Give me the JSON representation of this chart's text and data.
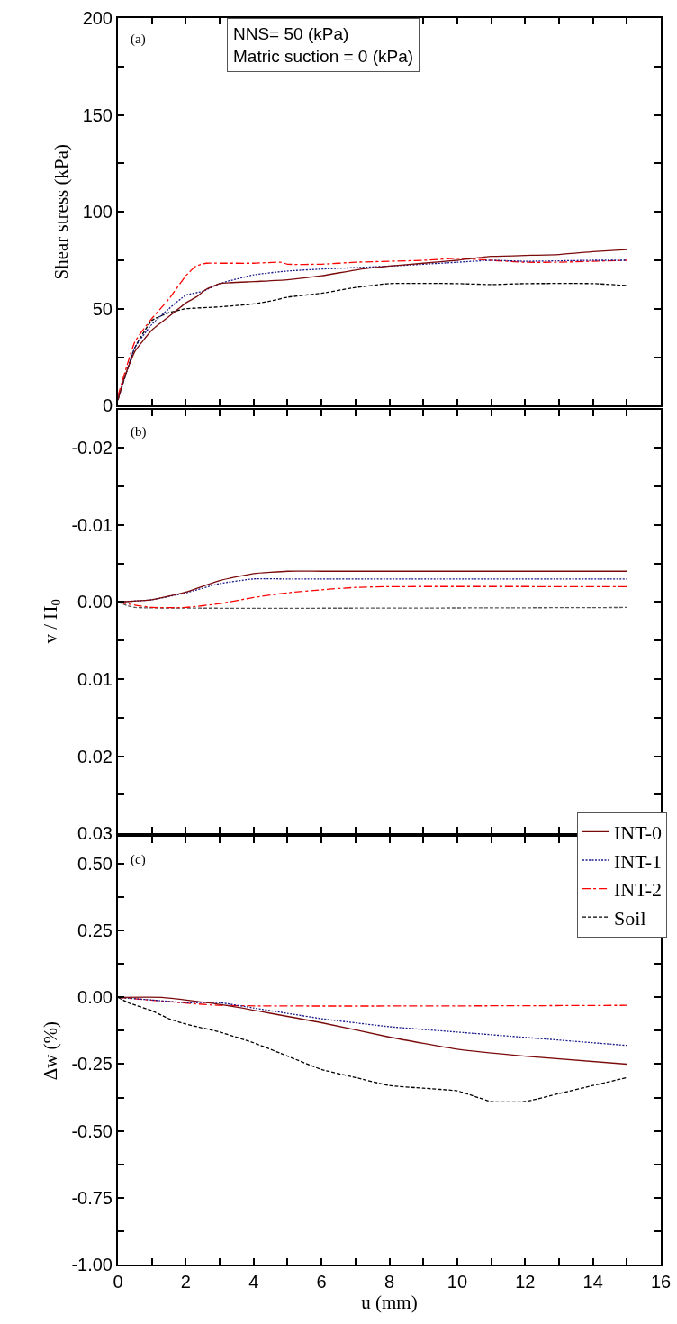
{
  "chart_data": [
    {
      "type": "line",
      "ylabel": "Shear stress (kPa)",
      "annotations": [
        "(a)",
        "NNS= 50 (kPa)",
        "Matric suction = 0 (kPa)"
      ],
      "xlim": [
        0,
        16
      ],
      "xticks": [
        0,
        {
          "value": 1,
          "label": null
        },
        2,
        {
          "value": 3,
          "label": null
        },
        4,
        {
          "value": 5,
          "label": null
        },
        6,
        {
          "value": 7,
          "label": null
        },
        8,
        {
          "value": 9,
          "label": null
        },
        10,
        {
          "value": 11,
          "label": null
        },
        12,
        {
          "value": 13,
          "label": null
        },
        14,
        {
          "value": 15,
          "label": null
        },
        16
      ],
      "ylim": [
        0,
        200
      ],
      "yticks": [
        0,
        {
          "value": 25,
          "label": null
        },
        50,
        {
          "value": 75,
          "label": null
        },
        100,
        {
          "value": 125,
          "label": null
        },
        150,
        {
          "value": 175,
          "label": null
        },
        200
      ],
      "tick_labels": "y",
      "series": [
        {
          "color": "#7b0a0a",
          "line_style": "solid",
          "x": [
            0,
            0.2,
            0.5,
            1,
            1.5,
            2,
            2.3,
            2.6,
            3,
            4,
            5,
            6,
            7,
            8,
            9,
            10,
            11,
            12,
            13,
            14,
            15
          ],
          "values": [
            3,
            15,
            28,
            39,
            46,
            53,
            56,
            60,
            63,
            64,
            65,
            67,
            70,
            72,
            73.5,
            75,
            77,
            77.5,
            78,
            79.5,
            80.5
          ]
        },
        {
          "color": "#1a1a8c",
          "line_style": "dotted",
          "x": [
            0,
            0.5,
            1,
            1.5,
            2,
            2.5,
            3,
            4,
            5,
            6,
            8,
            10,
            11,
            12,
            14,
            15
          ],
          "values": [
            3,
            30,
            42,
            50,
            57,
            59,
            63,
            67.5,
            69.5,
            70.5,
            72,
            74,
            75,
            74.5,
            75,
            75
          ]
        },
        {
          "color": "#ff0000",
          "line_style": "dashdot",
          "x": [
            0,
            0.5,
            1,
            1.5,
            2,
            2.3,
            2.6,
            3,
            4,
            4.8,
            5,
            6,
            7,
            9,
            10,
            11,
            12,
            13,
            14,
            15
          ],
          "values": [
            5,
            33,
            45,
            55,
            67,
            72,
            73.5,
            73.5,
            73.5,
            74,
            73,
            73,
            74,
            75,
            76,
            75,
            74,
            74,
            74.5,
            75
          ]
        },
        {
          "color": "#000000",
          "line_style": "dashed",
          "x": [
            0,
            0.5,
            1,
            1.5,
            2,
            3,
            4,
            4.5,
            5,
            6,
            7,
            8,
            10,
            11,
            12,
            14,
            15
          ],
          "values": [
            3,
            30,
            44,
            48,
            50,
            51,
            52.5,
            54,
            56,
            58,
            61,
            63,
            63,
            62.5,
            63,
            63,
            62
          ]
        }
      ]
    },
    {
      "type": "line",
      "ylabel": "v / H$_{0}$",
      "annotations": [
        "(b)"
      ],
      "xlim": [
        0,
        16
      ],
      "xticks": [
        0,
        {
          "value": 1,
          "label": null
        },
        2,
        {
          "value": 3,
          "label": null
        },
        4,
        {
          "value": 5,
          "label": null
        },
        6,
        {
          "value": 7,
          "label": null
        },
        8,
        {
          "value": 9,
          "label": null
        },
        10,
        {
          "value": 11,
          "label": null
        },
        12,
        {
          "value": 13,
          "label": null
        },
        14,
        {
          "value": 15,
          "label": null
        },
        16
      ],
      "ylim": [
        0.03,
        -0.025
      ],
      "yticks": [
        -0.02,
        {
          "value": -0.015,
          "label": null
        },
        -0.01,
        {
          "value": -0.005,
          "label": null
        },
        {
          "value": 0,
          "label": "0.00"
        },
        {
          "value": 0.005,
          "label": null
        },
        0.01,
        {
          "value": 0.015,
          "label": null
        },
        0.02,
        {
          "value": 0.025,
          "label": null
        },
        0.03
      ],
      "tick_labels": "y",
      "series": [
        {
          "color": "#7b0a0a",
          "line_style": "solid",
          "x": [
            0,
            1,
            2,
            3,
            4,
            5,
            6,
            15
          ],
          "values": [
            0,
            -0.0003,
            -0.0013,
            -0.0028,
            -0.0037,
            -0.004,
            -0.004,
            -0.004
          ]
        },
        {
          "color": "#1a1a8c",
          "line_style": "dotted",
          "x": [
            0,
            1,
            2,
            3,
            4,
            5,
            15
          ],
          "values": [
            0,
            -0.0003,
            -0.0012,
            -0.0024,
            -0.003,
            -0.003,
            -0.003
          ]
        },
        {
          "color": "#ff0000",
          "line_style": "dashdot",
          "x": [
            0,
            0.5,
            1,
            2,
            3,
            4,
            5,
            6,
            7,
            8,
            15
          ],
          "values": [
            0,
            0.0004,
            0.0007,
            0.0007,
            0.0002,
            -0.0006,
            -0.0012,
            -0.0016,
            -0.0019,
            -0.002,
            -0.002
          ]
        },
        {
          "color": "#555555",
          "line_style": "dashed",
          "x": [
            0,
            0.3,
            0.5,
            15
          ],
          "values": [
            0,
            0.0005,
            0.0007,
            0.0007
          ]
        }
      ]
    },
    {
      "type": "line",
      "ylabel": "Δw (%)",
      "xlabel": "u (mm)",
      "annotations": [
        "(c)"
      ],
      "xlim": [
        0,
        16
      ],
      "xticks": [
        0,
        {
          "value": 1,
          "label": null
        },
        2,
        {
          "value": 3,
          "label": null
        },
        4,
        {
          "value": 5,
          "label": null
        },
        6,
        {
          "value": 7,
          "label": null
        },
        8,
        {
          "value": 9,
          "label": null
        },
        10,
        {
          "value": 11,
          "label": null
        },
        12,
        {
          "value": 13,
          "label": null
        },
        14,
        {
          "value": 15,
          "label": null
        },
        16
      ],
      "ylim": [
        -1,
        0.6
      ],
      "yticks": [
        {
          "value": -1,
          "label": "-1.00"
        },
        {
          "value": -0.875,
          "label": null
        },
        -0.75,
        {
          "value": -0.625,
          "label": null
        },
        {
          "value": -0.5,
          "label": "-0.50"
        },
        {
          "value": -0.375,
          "label": null
        },
        -0.25,
        {
          "value": -0.125,
          "label": null
        },
        {
          "value": 0,
          "label": "0.00"
        },
        {
          "value": 0.125,
          "label": null
        },
        0.25,
        {
          "value": 0.375,
          "label": null
        },
        {
          "value": 0.5,
          "label": "0.50"
        }
      ],
      "legend": "top right",
      "series": [
        {
          "name": "INT-0",
          "color": "#7b0a0a",
          "line_style": "solid",
          "x": [
            0,
            1.3,
            3,
            6,
            8,
            10,
            12,
            15
          ],
          "values": [
            0,
            0,
            -0.026,
            -0.095,
            -0.149,
            -0.194,
            -0.22,
            -0.25
          ]
        },
        {
          "name": "INT-1",
          "color": "#1a1a8c",
          "line_style": "dotted",
          "x": [
            0,
            1,
            2,
            3,
            4,
            5,
            6,
            8,
            10,
            12,
            15
          ],
          "values": [
            0,
            -0.01,
            -0.02,
            -0.02,
            -0.04,
            -0.06,
            -0.08,
            -0.11,
            -0.13,
            -0.15,
            -0.18
          ]
        },
        {
          "name": "INT-2",
          "color": "#ff0000",
          "line_style": "dashdot",
          "x": [
            0,
            3,
            15
          ],
          "values": [
            0,
            -0.03,
            -0.03
          ]
        },
        {
          "name": "Soil",
          "color": "#000000",
          "line_style": "dashed",
          "x": [
            0,
            0.3,
            1,
            1.5,
            2,
            3,
            4,
            5,
            6,
            7,
            8,
            9,
            10,
            10.5,
            11,
            12,
            13,
            14,
            15
          ],
          "values": [
            0,
            -0.02,
            -0.05,
            -0.08,
            -0.1,
            -0.13,
            -0.17,
            -0.22,
            -0.27,
            -0.3,
            -0.33,
            -0.34,
            -0.35,
            -0.37,
            -0.39,
            -0.39,
            -0.36,
            -0.33,
            -0.3
          ]
        }
      ]
    }
  ]
}
